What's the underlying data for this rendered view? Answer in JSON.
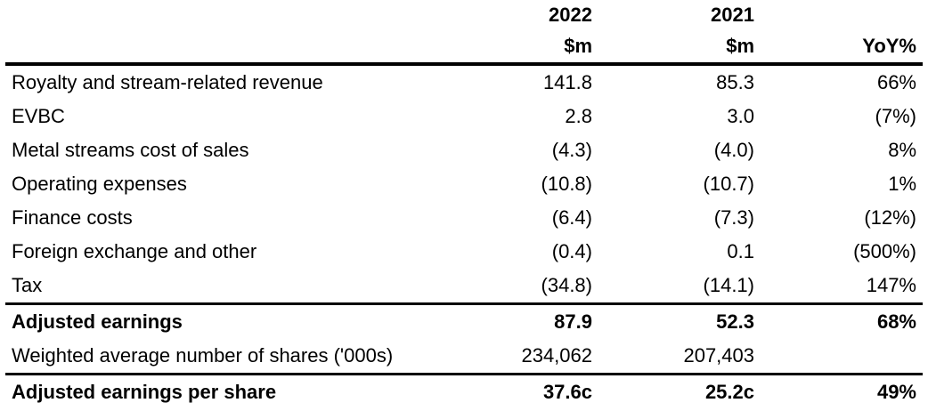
{
  "header": {
    "year1": "2022",
    "year2": "2021",
    "unit1": "$m",
    "unit2": "$m",
    "change": "YoY%"
  },
  "rows": [
    {
      "label": "Royalty and stream-related revenue",
      "v2022": "141.8",
      "v2021": "85.3",
      "yoy": "66%"
    },
    {
      "label": "EVBC",
      "v2022": "2.8",
      "v2021": "3.0",
      "yoy": "(7%)"
    },
    {
      "label": "Metal streams cost of sales",
      "v2022": "(4.3)",
      "v2021": "(4.0)",
      "yoy": "8%"
    },
    {
      "label": "Operating expenses",
      "v2022": "(10.8)",
      "v2021": "(10.7)",
      "yoy": "1%"
    },
    {
      "label": "Finance costs",
      "v2022": "(6.4)",
      "v2021": "(7.3)",
      "yoy": "(12%)"
    },
    {
      "label": "Foreign exchange and other",
      "v2022": "(0.4)",
      "v2021": "0.1",
      "yoy": "(500%)"
    },
    {
      "label": "Tax",
      "v2022": "(34.8)",
      "v2021": "(14.1)",
      "yoy": "147%"
    }
  ],
  "adjusted_earnings": {
    "label": "Adjusted earnings",
    "v2022": "87.9",
    "v2021": "52.3",
    "yoy": "68%"
  },
  "shares": {
    "label": "Weighted average number of shares ('000s)",
    "v2022": "234,062",
    "v2021": "207,403",
    "yoy": ""
  },
  "eps": {
    "label": "Adjusted earnings per share",
    "v2022": "37.6c",
    "v2021": "25.2c",
    "yoy": "49%"
  }
}
